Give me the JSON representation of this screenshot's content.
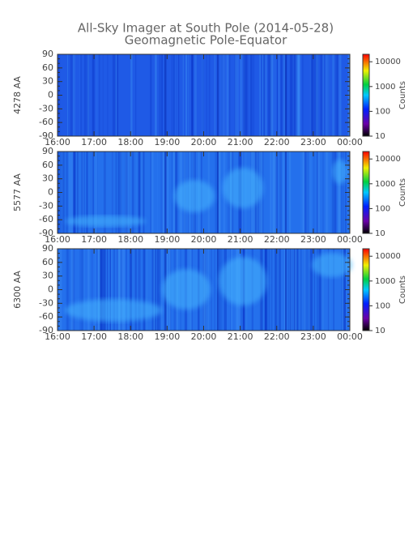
{
  "chart_data": [
    {
      "type": "keogram",
      "title": "All-Sky Imager at South Pole (2014-05-28)",
      "subtitle": "Geomagnetic Pole-Equator",
      "ylabel": "4278 AA",
      "ylim": [
        -90,
        90
      ],
      "yticks": [
        90,
        60,
        30,
        0,
        -30,
        -60,
        -90
      ],
      "xticks": [
        "16:00",
        "17:00",
        "18:00",
        "19:00",
        "20:00",
        "21:00",
        "22:00",
        "23:00",
        "00:00"
      ],
      "clim": [
        10,
        20000
      ],
      "cticks": [
        10,
        100,
        1000,
        10000
      ],
      "clabel": "Counts",
      "log_color": true
    },
    {
      "type": "keogram",
      "ylabel": "5577 AA",
      "ylim": [
        -90,
        90
      ],
      "yticks": [
        90,
        60,
        30,
        0,
        -30,
        -60,
        -90
      ],
      "xticks": [
        "16:00",
        "17:00",
        "18:00",
        "19:00",
        "20:00",
        "21:00",
        "22:00",
        "23:00",
        "00:00"
      ],
      "clim": [
        10,
        20000
      ],
      "cticks": [
        10,
        100,
        1000,
        10000
      ],
      "clabel": "Counts",
      "log_color": true
    },
    {
      "type": "keogram",
      "ylabel": "6300 AA",
      "ylim": [
        -90,
        90
      ],
      "yticks": [
        90,
        60,
        30,
        0,
        -30,
        -60,
        -90
      ],
      "xticks": [
        "16:00",
        "17:00",
        "18:00",
        "19:00",
        "20:00",
        "21:00",
        "22:00",
        "23:00",
        "00:00"
      ],
      "clim": [
        10,
        20000
      ],
      "cticks": [
        10,
        100,
        1000,
        10000
      ],
      "clabel": "Counts",
      "log_color": true
    }
  ]
}
